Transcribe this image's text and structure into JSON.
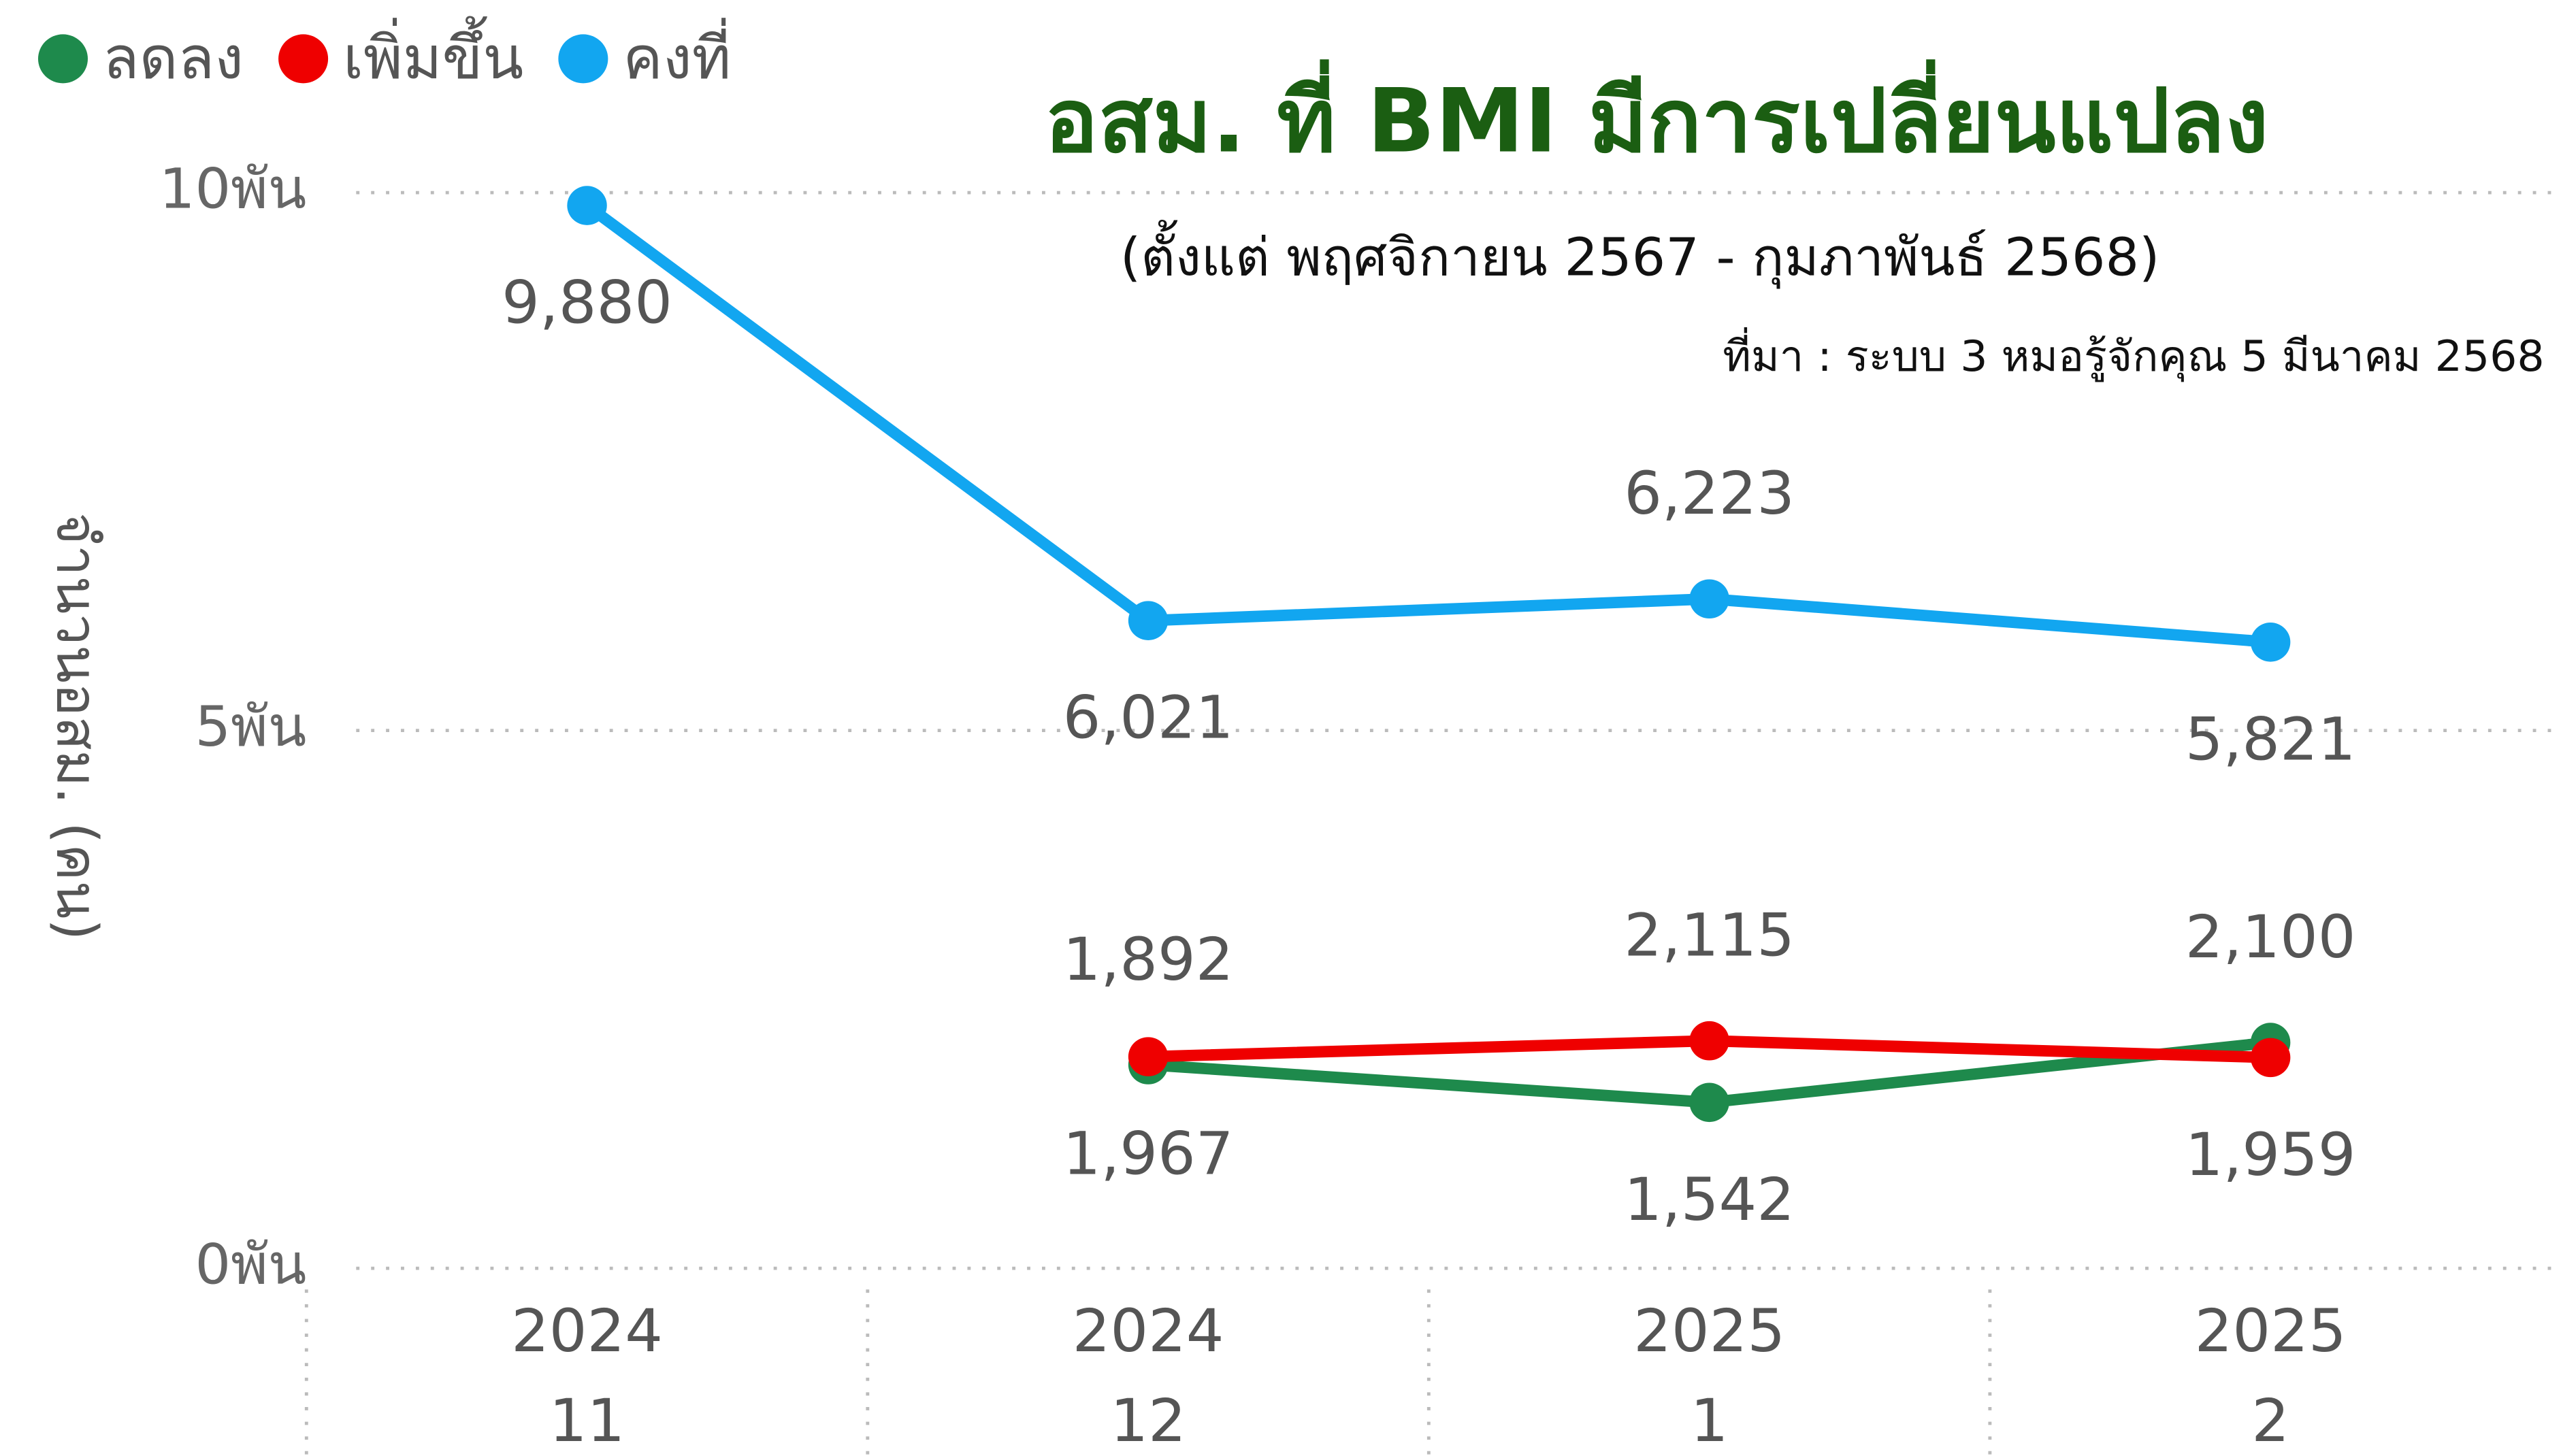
{
  "chart_data": {
    "type": "line",
    "title": "อสม. ที่ BMI  มีการเปลี่ยนแปลง",
    "subtitle": "(ตั้งแต่ พฤศจิกายน 2567 - กุมภาพันธ์ 2568)",
    "source": "ที่มา :  ระบบ 3 หมอรู้จักคุณ 5 มีนาคม 2568",
    "y_label": "จำนวนอสม. (คน)",
    "categories": [
      [
        "2024",
        "11"
      ],
      [
        "2024",
        "12"
      ],
      [
        "2025",
        "1"
      ],
      [
        "2025",
        "2"
      ]
    ],
    "series": [
      {
        "name": "ลดลง",
        "color": "#1e8a4c",
        "values": [
          null,
          1892,
          1542,
          2100
        ],
        "value_labels": [
          null,
          "1,892",
          "1,542",
          "2,100"
        ]
      },
      {
        "name": "เพิ่มขึ้น",
        "color": "#ef0000",
        "values": [
          null,
          1967,
          2115,
          1959
        ],
        "value_labels": [
          null,
          "1,967",
          "2,115",
          "1,959"
        ]
      },
      {
        "name": "คงที่",
        "color": "#12a6f0",
        "values": [
          9880,
          6021,
          6223,
          5821
        ],
        "value_labels": [
          "9,880",
          "6,021",
          "6,223",
          "5,821"
        ]
      }
    ],
    "ylim": [
      0,
      10000
    ],
    "yticks": [
      {
        "value": 0,
        "label": "0พัน"
      },
      {
        "value": 5000,
        "label": "5พัน"
      },
      {
        "value": 10000,
        "label": "10พัน"
      }
    ],
    "grid": true,
    "legend": "top-left"
  }
}
